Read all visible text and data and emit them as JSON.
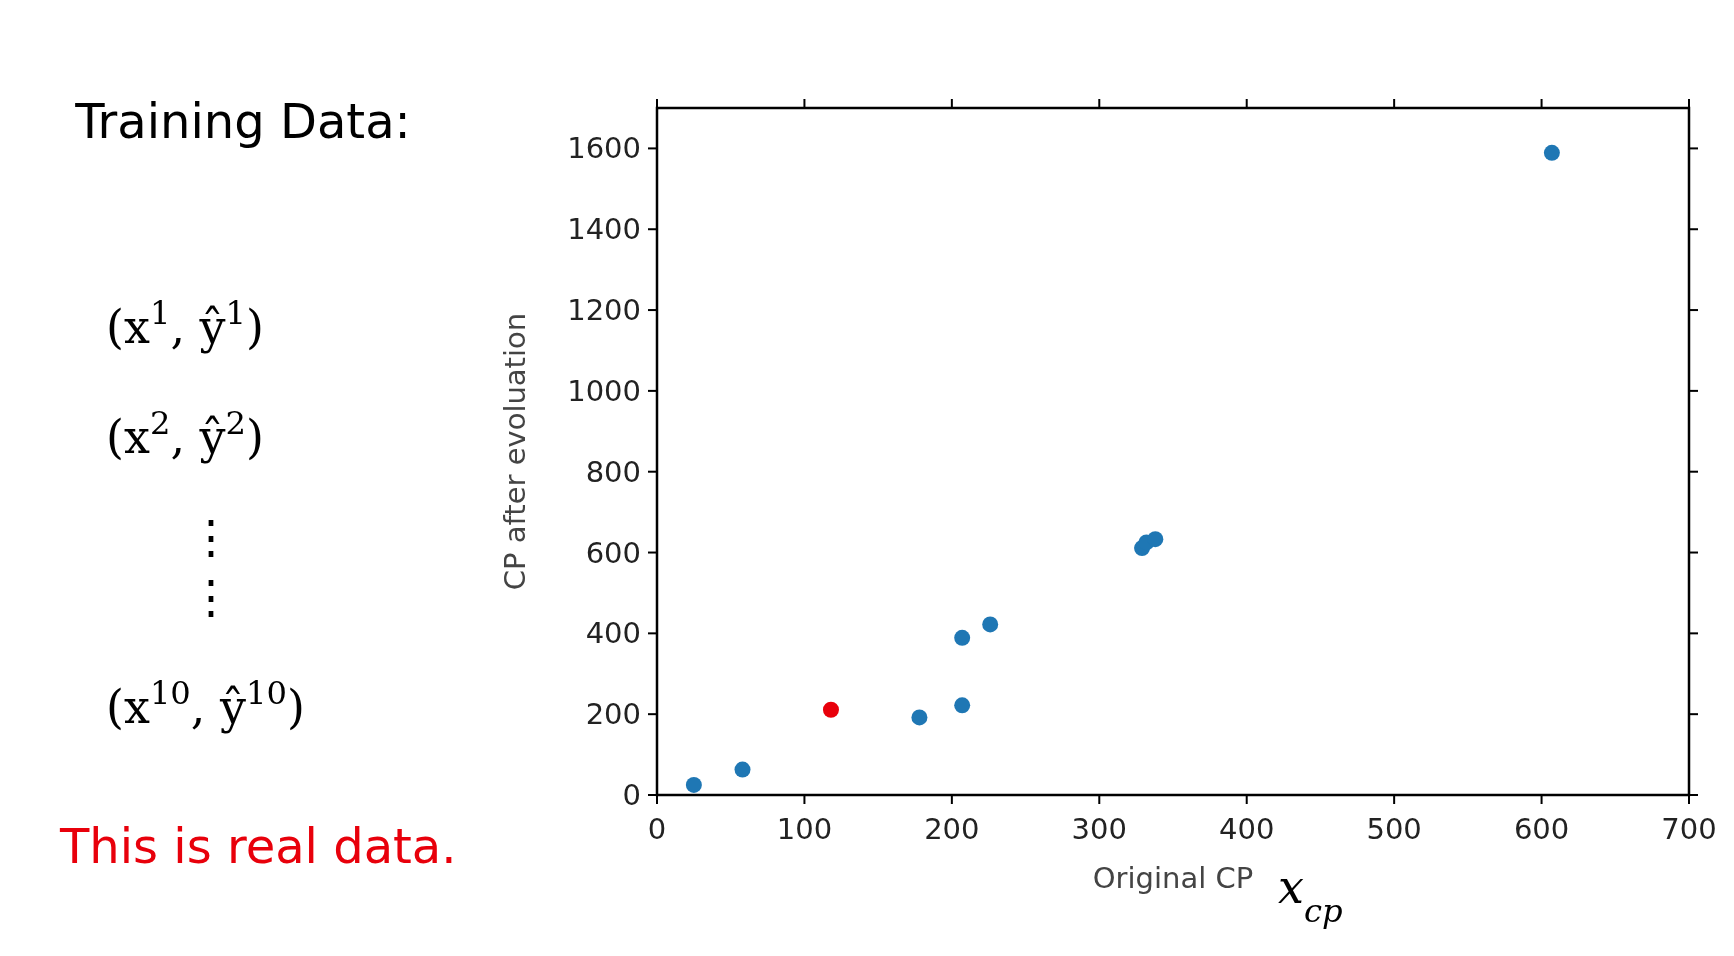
{
  "chart_data": {
    "type": "scatter",
    "title": "Training Data:",
    "xlabel": "Original CP",
    "ylabel": "CP after evoluation",
    "xlim": [
      0,
      700
    ],
    "ylim": [
      0,
      1700
    ],
    "xticks": [
      0,
      100,
      200,
      300,
      400,
      500,
      600,
      700
    ],
    "yticks": [
      0,
      200,
      400,
      600,
      800,
      1000,
      1200,
      1400,
      1600
    ],
    "marker": "circle",
    "grid": false,
    "series": [
      {
        "color": "#1f77b4",
        "x": [
          25,
          58,
          178,
          207,
          207,
          226,
          329,
          332,
          338,
          607
        ],
        "values": [
          25,
          63,
          192,
          222,
          389,
          422,
          611,
          625,
          633,
          1589
        ]
      },
      {
        "color": "#e8000b",
        "x": [
          118
        ],
        "values": [
          211
        ]
      }
    ],
    "annotations": [
      "(x$^{1}$, ŷ$^{1}$)",
      "(x$^{2}$, ŷ$^{2}$)",
      "⋮",
      "⋮",
      "(x$^{10}$, ŷ$^{10}$)",
      "This is real data.",
      "x$_{cp}$"
    ]
  }
}
